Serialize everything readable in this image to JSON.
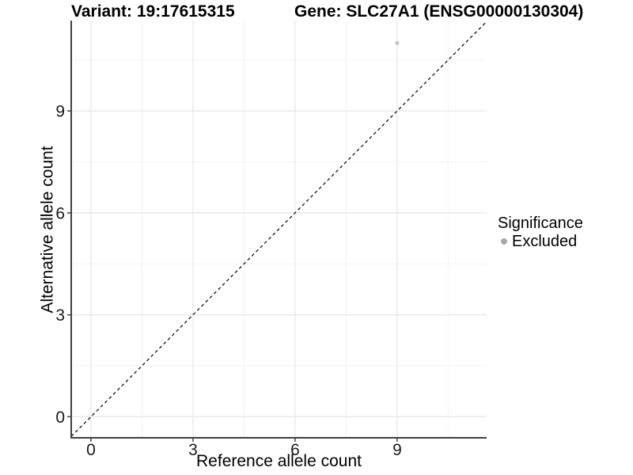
{
  "header": {
    "variant_title": "Variant: 19:17615315",
    "gene_title": "Gene: SLC27A1 (ENSG00000130304)"
  },
  "legend": {
    "title": "Significance",
    "items": [
      {
        "label": "Excluded",
        "color": "#a9a9a9"
      }
    ]
  },
  "colors": {
    "background": "#ffffff",
    "axis_line": "#404040",
    "tick_mark": "#404040",
    "tick_label": "#1a1a1a",
    "grid_major": "#e6e6e6",
    "grid_minor": "#f2f2f2",
    "identity_line": "#000000",
    "point": "#c4c4c4"
  },
  "chart_data": {
    "type": "scatter",
    "title": "Variant: 19:17615315 | Gene: SLC27A1 (ENSG00000130304)",
    "xlabel": "Reference allele count",
    "ylabel": "Alternative allele count",
    "xlim": [
      -0.58,
      11.63
    ],
    "ylim": [
      -0.62,
      11.66
    ],
    "xticks": [
      0,
      3,
      6,
      9
    ],
    "yticks": [
      0,
      3,
      6,
      9
    ],
    "x_minor_ticks": [
      1.5,
      4.5,
      7.5,
      10.5
    ],
    "y_minor_ticks": [
      1.5,
      4.5,
      7.5,
      10.5
    ],
    "grid": true,
    "legend_position": "right",
    "legend_title": "Significance",
    "identity_line": {
      "slope": 1,
      "intercept": 0,
      "style": "dashed",
      "color": "#000000"
    },
    "series": [
      {
        "name": "Excluded",
        "color": "#c4c4c4",
        "point_radius": 2.5,
        "points": [
          {
            "x": 9,
            "y": 11
          }
        ]
      }
    ]
  }
}
